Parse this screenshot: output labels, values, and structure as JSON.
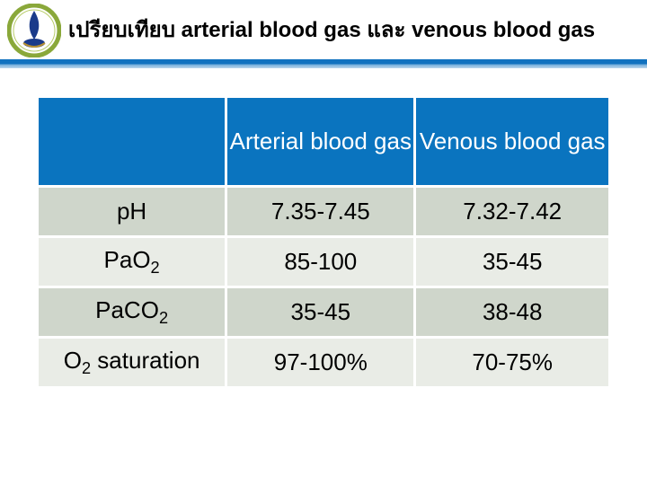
{
  "header": {
    "title": "เปรียบเทียบ arterial blood gas และ venous blood gas"
  },
  "logo": {
    "outer_ring_color": "#8aa83a",
    "inner_bg": "#ffffff",
    "emblem_color": "#1a3a8a"
  },
  "divider": {
    "top_color": "#1172bf",
    "bottom_color": "#bcd7ec"
  },
  "table": {
    "type": "table",
    "header_bg": "#0a74bf",
    "header_text_color": "#ffffff",
    "row_odd_bg": "#cfd6cb",
    "row_even_bg": "#e9ece6",
    "cell_text_color": "#000000",
    "border_color": "#ffffff",
    "font_size": 26,
    "columns": [
      {
        "label": "",
        "width_pct": 33
      },
      {
        "label": "Arterial blood gas",
        "width_pct": 33
      },
      {
        "label": "Venous blood gas",
        "width_pct": 34
      }
    ],
    "rows": [
      {
        "label": "pH",
        "label_sub": "",
        "arterial": "7.35-7.45",
        "venous": "7.32-7.42"
      },
      {
        "label": "PaO",
        "label_sub": "2",
        "arterial": "85-100",
        "venous": "35-45"
      },
      {
        "label": "PaCO",
        "label_sub": "2",
        "arterial": "35-45",
        "venous": "38-48"
      },
      {
        "label": "O",
        "label_sub": "2",
        "label_after": " saturation",
        "arterial": "97-100%",
        "venous": "70-75%"
      }
    ]
  }
}
